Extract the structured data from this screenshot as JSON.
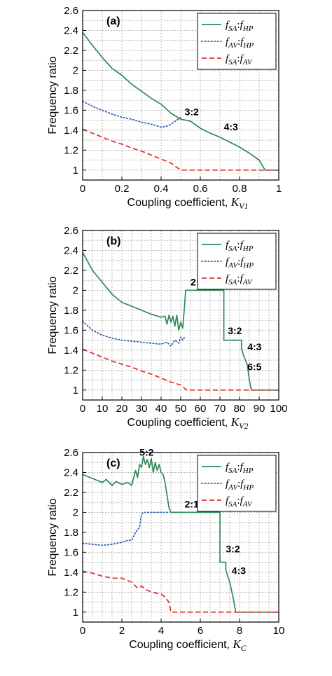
{
  "chart_data": [
    {
      "type": "line",
      "panel_label": "(a)",
      "xlabel": "Coupling coefficient, ",
      "xlabel_sub": "V1",
      "xlabel_var": "K",
      "ylabel": "Frequency ratio",
      "xlim": [
        0,
        1
      ],
      "ylim": [
        0.9,
        2.6
      ],
      "xticks": [
        0,
        0.2,
        0.4,
        0.6,
        0.8,
        1
      ],
      "xtick_labels": [
        "0",
        "0.2",
        "0.4",
        "0.6",
        "0.8",
        "1"
      ],
      "yticks": [
        1,
        1.2,
        1.4,
        1.6,
        1.8,
        2,
        2.2,
        2.4,
        2.6
      ],
      "ytick_labels": [
        "1",
        "1.2",
        "1.4",
        "1.6",
        "1.8",
        "2",
        "2.2",
        "2.4",
        "2.6"
      ],
      "xgrid_step": 0.1,
      "ygrid_step": 0.1,
      "grid": true,
      "legend_position": "top-right",
      "series": [
        {
          "name": "fSA:fHP",
          "legend": [
            "f",
            "SA",
            ":",
            "f",
            "HP"
          ],
          "color": "#2e8b57",
          "style": "solid",
          "x": [
            0,
            0.05,
            0.1,
            0.15,
            0.2,
            0.25,
            0.3,
            0.35,
            0.4,
            0.45,
            0.5,
            0.55,
            0.6,
            0.65,
            0.7,
            0.75,
            0.8,
            0.85,
            0.9,
            0.93,
            1.0
          ],
          "y": [
            2.38,
            2.25,
            2.13,
            2.02,
            1.95,
            1.86,
            1.79,
            1.72,
            1.66,
            1.57,
            1.51,
            1.49,
            1.42,
            1.37,
            1.33,
            1.28,
            1.23,
            1.17,
            1.1,
            1.0,
            1.0
          ]
        },
        {
          "name": "fAV:fHP",
          "legend": [
            "f",
            "AV",
            ":",
            "f",
            "HP"
          ],
          "color": "#3c64b4",
          "style": "dotted",
          "x": [
            0,
            0.05,
            0.1,
            0.15,
            0.2,
            0.25,
            0.3,
            0.35,
            0.4,
            0.43,
            0.45,
            0.48,
            0.5
          ],
          "y": [
            1.69,
            1.64,
            1.6,
            1.56,
            1.53,
            1.51,
            1.48,
            1.46,
            1.43,
            1.44,
            1.46,
            1.5,
            1.53
          ]
        },
        {
          "name": "fSA:fAV",
          "legend": [
            "f",
            "SA",
            ":",
            "f",
            "AV"
          ],
          "color": "#e0302a",
          "style": "dashed",
          "x": [
            0,
            0.05,
            0.1,
            0.15,
            0.2,
            0.25,
            0.3,
            0.35,
            0.4,
            0.45,
            0.5,
            0.55,
            1.0
          ],
          "y": [
            1.41,
            1.37,
            1.33,
            1.29,
            1.26,
            1.22,
            1.19,
            1.15,
            1.11,
            1.07,
            1.0,
            1.0,
            1.0
          ]
        }
      ],
      "annotations": [
        {
          "text": "3:2",
          "x": 0.52,
          "y": 1.55
        },
        {
          "text": "4:3",
          "x": 0.72,
          "y": 1.4
        }
      ]
    },
    {
      "type": "line",
      "panel_label": "(b)",
      "xlabel": "Coupling coefficient, ",
      "xlabel_sub": "V2",
      "xlabel_var": "K",
      "ylabel": "Frequency ratio",
      "xlim": [
        0,
        100
      ],
      "ylim": [
        0.9,
        2.6
      ],
      "xticks": [
        0,
        10,
        20,
        30,
        40,
        50,
        60,
        70,
        80,
        90,
        100
      ],
      "xtick_labels": [
        "0",
        "10",
        "20",
        "30",
        "40",
        "50",
        "60",
        "70",
        "80",
        "90",
        "100"
      ],
      "yticks": [
        1,
        1.2,
        1.4,
        1.6,
        1.8,
        2,
        2.2,
        2.4,
        2.6
      ],
      "ytick_labels": [
        "1",
        "1.2",
        "1.4",
        "1.6",
        "1.8",
        "2",
        "2.2",
        "2.4",
        "2.6"
      ],
      "xgrid_step": 5,
      "ygrid_step": 0.1,
      "grid": true,
      "legend_position": "top-right",
      "series": [
        {
          "name": "fSA:fHP",
          "legend": [
            "f",
            "SA",
            ":",
            "f",
            "HP"
          ],
          "color": "#2e8b57",
          "style": "solid",
          "x": [
            0,
            5,
            10,
            15,
            20,
            25,
            30,
            35,
            40,
            42,
            43,
            44,
            45,
            46,
            47,
            48,
            49,
            50,
            51,
            52,
            52.5,
            53,
            72,
            72,
            81,
            81,
            82,
            83,
            84,
            85,
            86,
            100
          ],
          "y": [
            2.38,
            2.2,
            2.08,
            1.96,
            1.88,
            1.84,
            1.8,
            1.76,
            1.73,
            1.74,
            1.66,
            1.75,
            1.68,
            1.74,
            1.64,
            1.75,
            1.6,
            1.68,
            1.62,
            1.85,
            2.0,
            2.0,
            2.0,
            1.5,
            1.5,
            1.42,
            1.35,
            1.3,
            1.25,
            1.1,
            1.0,
            1.0
          ]
        },
        {
          "name": "fAV:fHP",
          "legend": [
            "f",
            "AV",
            ":",
            "f",
            "HP"
          ],
          "color": "#3c64b4",
          "style": "dotted",
          "x": [
            0,
            5,
            10,
            15,
            20,
            25,
            30,
            35,
            40,
            43,
            45,
            47,
            49,
            50,
            51,
            52
          ],
          "y": [
            1.69,
            1.6,
            1.55,
            1.52,
            1.5,
            1.49,
            1.48,
            1.47,
            1.46,
            1.48,
            1.44,
            1.5,
            1.47,
            1.53,
            1.5,
            1.53
          ]
        },
        {
          "name": "fSA:fAV",
          "legend": [
            "f",
            "SA",
            ":",
            "f",
            "AV"
          ],
          "color": "#e0302a",
          "style": "dashed",
          "x": [
            0,
            5,
            10,
            15,
            20,
            25,
            30,
            35,
            40,
            45,
            50,
            53,
            55,
            100
          ],
          "y": [
            1.41,
            1.37,
            1.33,
            1.29,
            1.26,
            1.23,
            1.19,
            1.16,
            1.12,
            1.08,
            1.05,
            1.0,
            1.0,
            1.0
          ]
        }
      ],
      "annotations": [
        {
          "text": "2:1",
          "x": 55,
          "y": 2.05
        },
        {
          "text": "3:2",
          "x": 74,
          "y": 1.56
        },
        {
          "text": "4:3",
          "x": 84,
          "y": 1.4
        },
        {
          "text": "6:5",
          "x": 84,
          "y": 1.2
        }
      ]
    },
    {
      "type": "line",
      "panel_label": "(c)",
      "xlabel": "Coupling coefficient, ",
      "xlabel_sub": "C",
      "xlabel_var": "K",
      "ylabel": "Frequency ratio",
      "xlim": [
        0,
        10
      ],
      "ylim": [
        0.9,
        2.6
      ],
      "xticks": [
        0,
        2,
        4,
        6,
        8,
        10
      ],
      "xtick_labels": [
        "0",
        "2",
        "4",
        "6",
        "8",
        "10"
      ],
      "yticks": [
        1,
        1.2,
        1.4,
        1.6,
        1.8,
        2,
        2.2,
        2.4,
        2.6
      ],
      "ytick_labels": [
        "1",
        "1.2",
        "1.4",
        "1.6",
        "1.8",
        "2",
        "2.2",
        "2.4",
        "2.6"
      ],
      "xgrid_step": 0.5,
      "ygrid_step": 0.1,
      "grid": true,
      "legend_position": "top-right",
      "series": [
        {
          "name": "fSA:fHP",
          "legend": [
            "f",
            "SA",
            ":",
            "f",
            "HP"
          ],
          "color": "#2e8b57",
          "style": "solid",
          "x": [
            0,
            0.5,
            1.0,
            1.2,
            1.5,
            1.7,
            2.0,
            2.3,
            2.5,
            2.7,
            2.8,
            2.9,
            3.0,
            3.1,
            3.2,
            3.3,
            3.4,
            3.5,
            3.6,
            3.7,
            3.8,
            3.9,
            4.0,
            4.1,
            4.2,
            4.4,
            4.5,
            7.0,
            7.0,
            7.3,
            7.3,
            7.5,
            7.7,
            7.8,
            10
          ],
          "y": [
            2.38,
            2.34,
            2.3,
            2.33,
            2.27,
            2.31,
            2.28,
            2.3,
            2.27,
            2.42,
            2.35,
            2.48,
            2.45,
            2.56,
            2.48,
            2.53,
            2.45,
            2.54,
            2.4,
            2.5,
            2.42,
            2.48,
            2.4,
            2.38,
            2.3,
            2.05,
            2.0,
            2.0,
            1.5,
            1.5,
            1.42,
            1.3,
            1.12,
            1.0,
            1.0
          ]
        },
        {
          "name": "fAV:fHP",
          "legend": [
            "f",
            "AV",
            ":",
            "f",
            "HP"
          ],
          "color": "#3c64b4",
          "style": "dotted",
          "x": [
            0,
            0.5,
            1.0,
            1.5,
            2.0,
            2.3,
            2.5,
            2.7,
            2.9,
            3.0,
            3.1,
            3.5,
            4.0,
            4.4
          ],
          "y": [
            1.69,
            1.68,
            1.67,
            1.68,
            1.7,
            1.72,
            1.72,
            1.8,
            1.85,
            1.98,
            2.0,
            2.0,
            2.0,
            2.0
          ]
        },
        {
          "name": "fSA:fAV",
          "legend": [
            "f",
            "SA",
            ":",
            "f",
            "AV"
          ],
          "color": "#e0302a",
          "style": "dashed",
          "x": [
            0,
            0.5,
            1.0,
            1.5,
            2.0,
            2.5,
            2.8,
            3.0,
            3.2,
            3.5,
            4.0,
            4.2,
            4.4,
            4.5,
            4.7,
            10
          ],
          "y": [
            1.41,
            1.39,
            1.36,
            1.34,
            1.34,
            1.3,
            1.24,
            1.26,
            1.23,
            1.2,
            1.18,
            1.15,
            1.1,
            1.0,
            1.0,
            1.0
          ]
        }
      ],
      "annotations": [
        {
          "text": "5:2",
          "x": 2.9,
          "y": 2.57
        },
        {
          "text": "2:1",
          "x": 5.2,
          "y": 2.05
        },
        {
          "text": "3:2",
          "x": 7.3,
          "y": 1.6
        },
        {
          "text": "4:3",
          "x": 7.6,
          "y": 1.38
        }
      ]
    }
  ]
}
